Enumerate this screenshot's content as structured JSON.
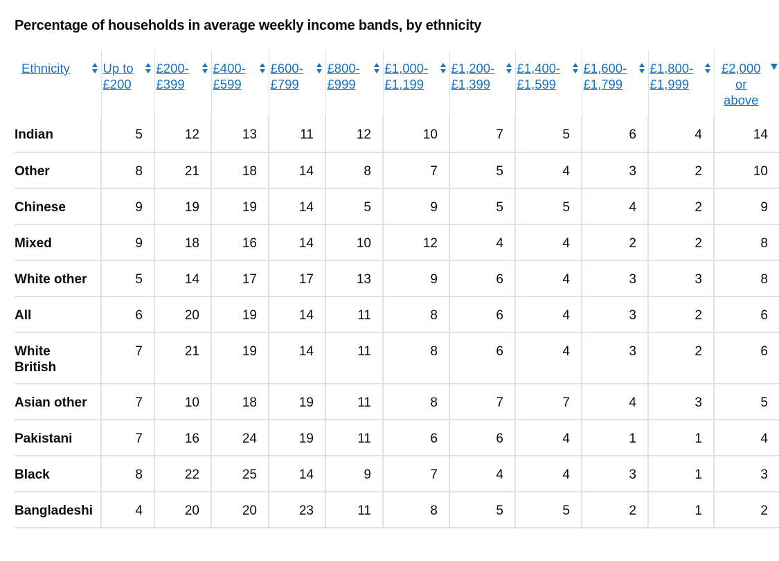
{
  "title": "Percentage of households in average weekly income bands, by ethnicity",
  "columns": [
    {
      "label": "Ethnicity",
      "sort": "both"
    },
    {
      "label": "Up to\n£200",
      "sort": "both"
    },
    {
      "label": "£200-\n£399",
      "sort": "both"
    },
    {
      "label": "£400-\n£599",
      "sort": "both"
    },
    {
      "label": "£600-\n£799",
      "sort": "both"
    },
    {
      "label": "£800-\n£999",
      "sort": "both"
    },
    {
      "label": "£1,000-\n£1,199",
      "sort": "both"
    },
    {
      "label": "£1,200-\n£1,399",
      "sort": "both"
    },
    {
      "label": "£1,400-\n£1,599",
      "sort": "both"
    },
    {
      "label": "£1,600-\n£1,799",
      "sort": "both"
    },
    {
      "label": "£1,800-\n£1,999",
      "sort": "both"
    },
    {
      "label": "£2,000\nor\nabove",
      "sort": "descending"
    }
  ],
  "rows": [
    {
      "ethnicity": "Indian",
      "values": [
        "5",
        "12",
        "13",
        "11",
        "12",
        "10",
        "7",
        "5",
        "6",
        "4",
        "14"
      ]
    },
    {
      "ethnicity": "Other",
      "values": [
        "8",
        "21",
        "18",
        "14",
        "8",
        "7",
        "5",
        "4",
        "3",
        "2",
        "10"
      ]
    },
    {
      "ethnicity": "Chinese",
      "values": [
        "9",
        "19",
        "19",
        "14",
        "5",
        "9",
        "5",
        "5",
        "4",
        "2",
        "9"
      ]
    },
    {
      "ethnicity": "Mixed",
      "values": [
        "9",
        "18",
        "16",
        "14",
        "10",
        "12",
        "4",
        "4",
        "2",
        "2",
        "8"
      ]
    },
    {
      "ethnicity": "White other",
      "values": [
        "5",
        "14",
        "17",
        "17",
        "13",
        "9",
        "6",
        "4",
        "3",
        "3",
        "8"
      ]
    },
    {
      "ethnicity": "All",
      "values": [
        "6",
        "20",
        "19",
        "14",
        "11",
        "8",
        "6",
        "4",
        "3",
        "2",
        "6"
      ]
    },
    {
      "ethnicity": "White\nBritish",
      "values": [
        "7",
        "21",
        "19",
        "14",
        "11",
        "8",
        "6",
        "4",
        "3",
        "2",
        "6"
      ]
    },
    {
      "ethnicity": "Asian other",
      "values": [
        "7",
        "10",
        "18",
        "19",
        "11",
        "8",
        "7",
        "7",
        "4",
        "3",
        "5"
      ]
    },
    {
      "ethnicity": "Pakistani",
      "values": [
        "7",
        "16",
        "24",
        "19",
        "11",
        "6",
        "6",
        "4",
        "1",
        "1",
        "4"
      ]
    },
    {
      "ethnicity": "Black",
      "values": [
        "8",
        "22",
        "25",
        "14",
        "9",
        "7",
        "4",
        "4",
        "3",
        "1",
        "3"
      ]
    },
    {
      "ethnicity": "Bangladeshi",
      "values": [
        "4",
        "20",
        "20",
        "23",
        "11",
        "8",
        "5",
        "5",
        "2",
        "1",
        "2"
      ]
    }
  ],
  "colors": {
    "link": "#1d70b8",
    "text": "#0b0c0c",
    "border": "#dfe1e2"
  }
}
